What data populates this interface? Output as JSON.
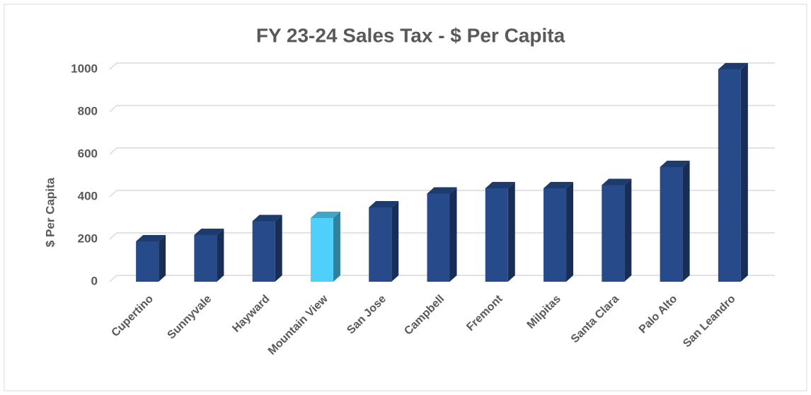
{
  "chart_data": {
    "type": "bar3d",
    "title": "FY 23-24 Sales Tax - $ Per Capita",
    "ylabel": "$ Per Capita",
    "categories": [
      "Cupertino",
      "Sunnyvale",
      "Hayward",
      "Mountain View",
      "San Jose",
      "Campbell",
      "Fremont",
      "Milpitas",
      "Santa Clara",
      "Palo Alto",
      "San Leandro"
    ],
    "values": [
      190,
      220,
      285,
      300,
      350,
      415,
      440,
      440,
      455,
      540,
      1000
    ],
    "colors": [
      "#264a8a",
      "#264a8a",
      "#264a8a",
      "#4fd0fb",
      "#264a8a",
      "#264a8a",
      "#264a8a",
      "#264a8a",
      "#264a8a",
      "#264a8a",
      "#264a8a"
    ],
    "ylim": [
      0,
      1000
    ],
    "yticks": [
      0,
      200,
      400,
      600,
      800,
      1000
    ],
    "grid": true
  }
}
